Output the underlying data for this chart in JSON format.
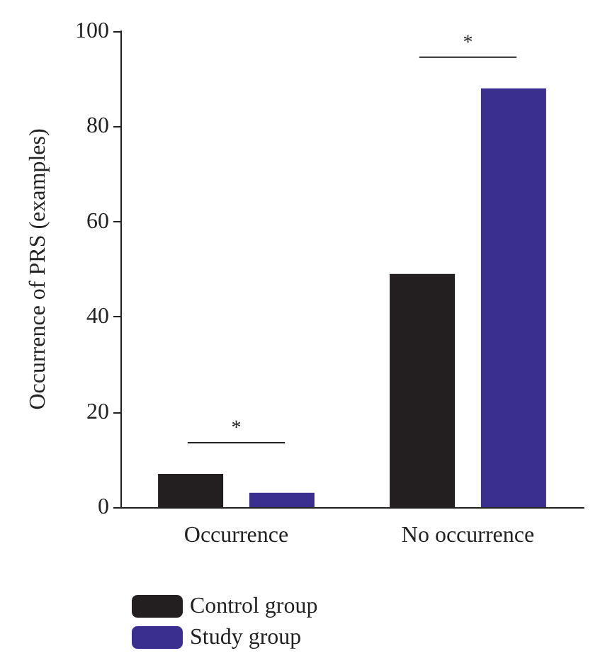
{
  "chart_data": {
    "type": "bar",
    "ylabel": "Occurrence of PRS (examples)",
    "categories": [
      "Occurrence",
      "No occurrence"
    ],
    "series": [
      {
        "name": "Control group",
        "color": "#231f20",
        "values": [
          7,
          49
        ]
      },
      {
        "name": "Study group",
        "color": "#3a2f8f",
        "values": [
          3,
          88
        ]
      }
    ],
    "ylim": [
      0,
      100
    ],
    "yticks": [
      0,
      20,
      40,
      60,
      80,
      100
    ],
    "grid": false,
    "legend": "bottom left",
    "annotations": [
      "*",
      "*"
    ]
  }
}
